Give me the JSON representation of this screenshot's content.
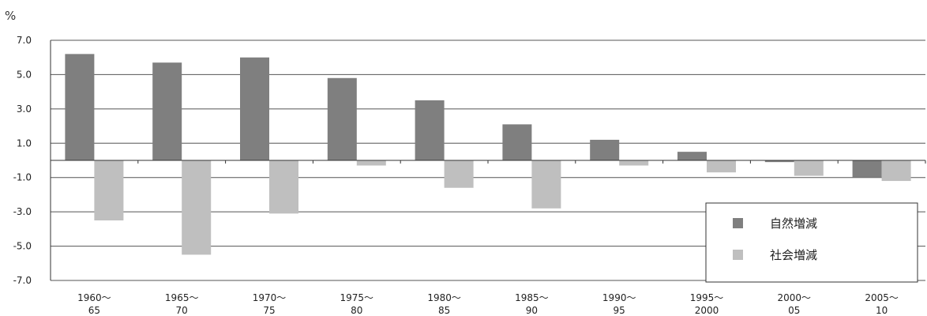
{
  "chart_data": {
    "type": "bar",
    "unit_label": "%",
    "categories": [
      [
        "1960〜",
        "65"
      ],
      [
        "1965〜",
        "70"
      ],
      [
        "1970〜",
        "75"
      ],
      [
        "1975〜",
        "80"
      ],
      [
        "1980〜",
        "85"
      ],
      [
        "1985〜",
        "90"
      ],
      [
        "1990〜",
        "95"
      ],
      [
        "1995〜",
        "2000"
      ],
      [
        "2000〜",
        "05"
      ],
      [
        "2005〜",
        "10"
      ]
    ],
    "series": [
      {
        "name": "自然増減",
        "color": "#7f7f7f",
        "values": [
          6.2,
          5.7,
          6.0,
          4.8,
          3.5,
          2.1,
          1.2,
          0.5,
          -0.1,
          -1.0
        ]
      },
      {
        "name": "社会増減",
        "color": "#bfbfbf",
        "values": [
          -3.5,
          -5.5,
          -3.1,
          -0.3,
          -1.6,
          -2.8,
          -0.3,
          -0.7,
          -0.9,
          -1.2
        ]
      }
    ],
    "yticks": [
      "7.0",
      "5.0",
      "3.0",
      "1.0",
      "-1.0",
      "-3.0",
      "-5.0",
      "-7.0"
    ],
    "ylim": [
      -7.0,
      7.0
    ],
    "grid": true,
    "legend_position": "bottom-right"
  }
}
